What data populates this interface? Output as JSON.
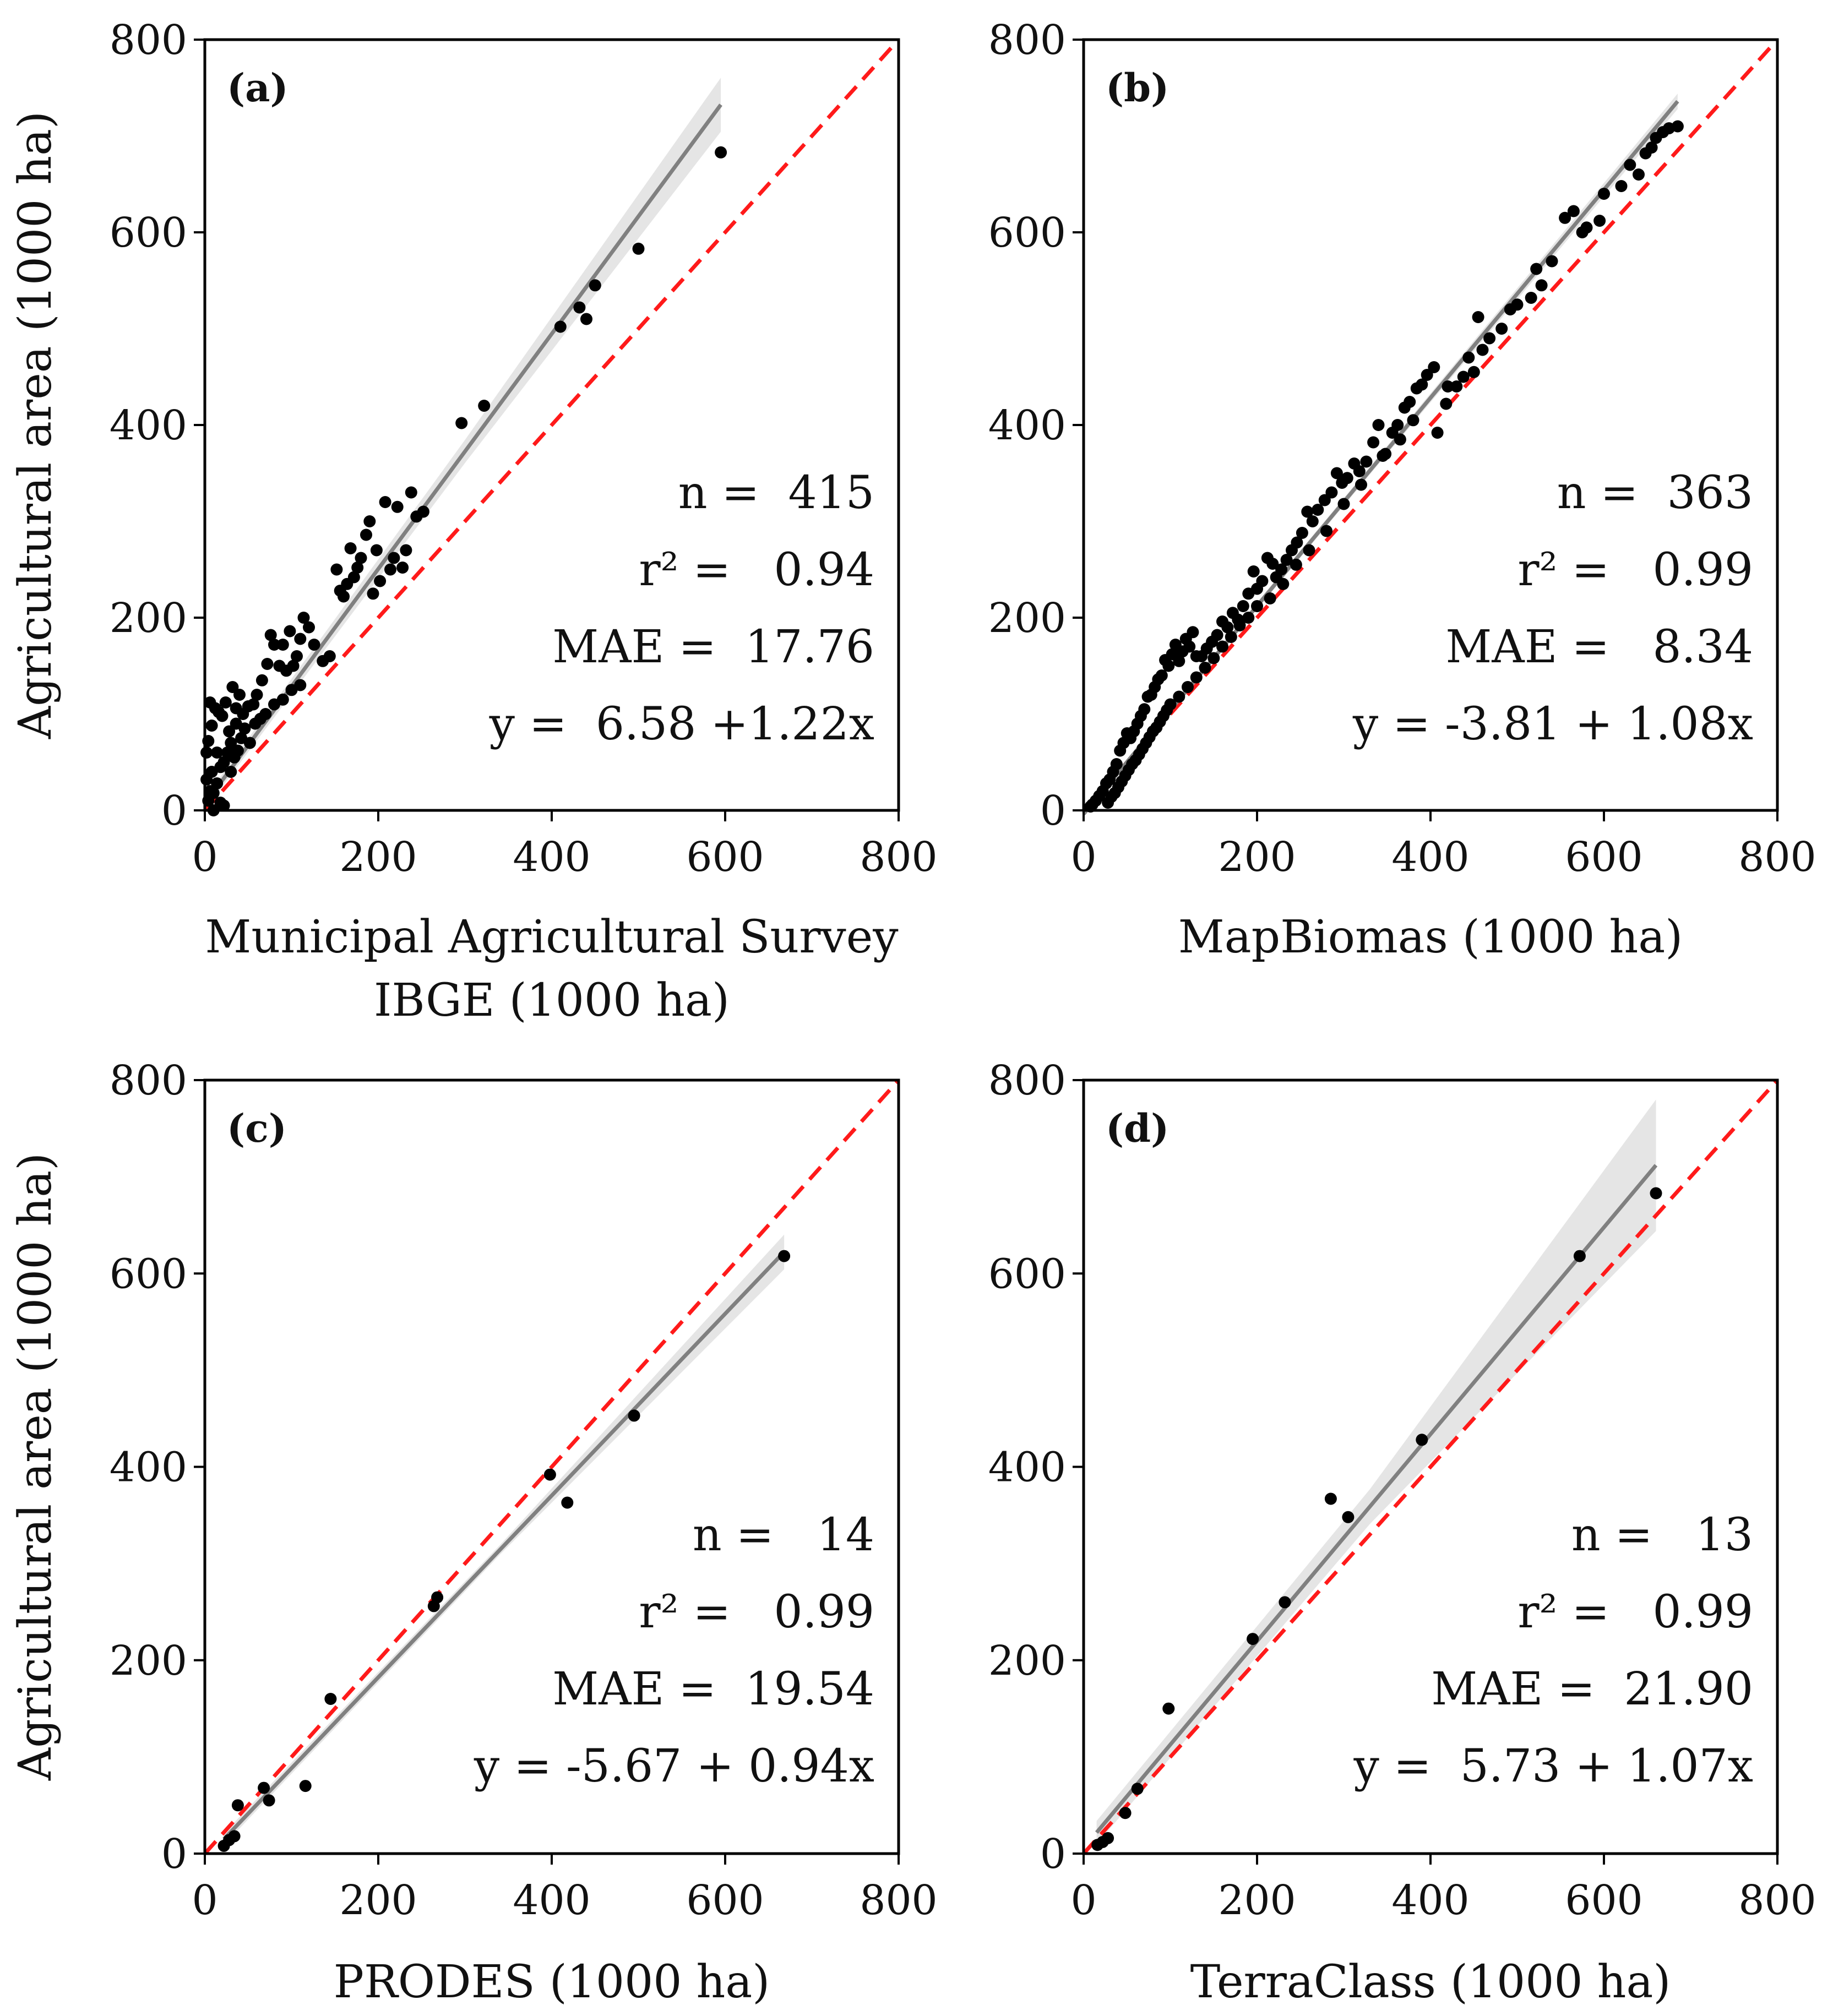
{
  "figure": {
    "ylabel": "Agricultural area (1000 ha)",
    "colors": {
      "points": "#000000",
      "fit_line": "#808080",
      "confidence_band": "#dcdcdc",
      "identity_line": "#ff1a1a",
      "axes": "#000000"
    }
  },
  "chart_data": [
    {
      "type": "scatter",
      "panel": "(a)",
      "xlabel_lines": [
        "Municipal Agricultural Survey",
        "IBGE (1000 ha)"
      ],
      "ylabel": "Agricultural area (1000 ha)",
      "xlim": [
        0,
        800
      ],
      "ylim": [
        0,
        800
      ],
      "ticks": [
        0,
        200,
        400,
        600,
        800
      ],
      "stats": [
        "n =  415",
        "r² =   0.94",
        "MAE =  17.76",
        "y =  6.58 +1.22x"
      ],
      "fit": {
        "intercept": 6.58,
        "slope": 1.22,
        "x_range": [
          0,
          595
        ],
        "band": [
          [
            0,
            6
          ],
          [
            300,
            12
          ],
          [
            595,
            28
          ]
        ]
      },
      "points": [
        [
          595,
          683
        ],
        [
          500,
          583
        ],
        [
          450,
          545
        ],
        [
          440,
          510
        ],
        [
          432,
          522
        ],
        [
          410,
          502
        ],
        [
          322,
          420
        ],
        [
          296,
          402
        ],
        [
          252,
          310
        ],
        [
          244,
          305
        ],
        [
          238,
          330
        ],
        [
          232,
          270
        ],
        [
          228,
          252
        ],
        [
          222,
          315
        ],
        [
          218,
          262
        ],
        [
          214,
          250
        ],
        [
          208,
          320
        ],
        [
          202,
          238
        ],
        [
          198,
          270
        ],
        [
          194,
          225
        ],
        [
          190,
          300
        ],
        [
          186,
          286
        ],
        [
          180,
          262
        ],
        [
          176,
          252
        ],
        [
          172,
          242
        ],
        [
          168,
          272
        ],
        [
          164,
          235
        ],
        [
          160,
          222
        ],
        [
          156,
          228
        ],
        [
          152,
          250
        ],
        [
          144,
          160
        ],
        [
          136,
          155
        ],
        [
          126,
          172
        ],
        [
          120,
          190
        ],
        [
          114,
          200
        ],
        [
          110,
          178
        ],
        [
          106,
          160
        ],
        [
          102,
          150
        ],
        [
          98,
          186
        ],
        [
          94,
          145
        ],
        [
          90,
          172
        ],
        [
          86,
          150
        ],
        [
          80,
          172
        ],
        [
          76,
          182
        ],
        [
          72,
          152
        ],
        [
          66,
          135
        ],
        [
          60,
          120
        ],
        [
          56,
          110
        ],
        [
          50,
          108
        ],
        [
          44,
          100
        ],
        [
          40,
          120
        ],
        [
          36,
          106
        ],
        [
          32,
          128
        ],
        [
          28,
          82
        ],
        [
          24,
          112
        ],
        [
          20,
          98
        ],
        [
          16,
          102
        ],
        [
          12,
          106
        ],
        [
          8,
          88
        ],
        [
          6,
          112
        ],
        [
          4,
          72
        ],
        [
          2,
          60
        ],
        [
          2,
          32
        ],
        [
          6,
          20
        ],
        [
          10,
          18
        ],
        [
          14,
          28
        ],
        [
          18,
          45
        ],
        [
          22,
          50
        ],
        [
          26,
          60
        ],
        [
          30,
          40
        ],
        [
          34,
          55
        ],
        [
          38,
          62
        ],
        [
          42,
          75
        ],
        [
          46,
          85
        ],
        [
          52,
          70
        ],
        [
          58,
          90
        ],
        [
          64,
          95
        ],
        [
          70,
          100
        ],
        [
          80,
          110
        ],
        [
          90,
          115
        ],
        [
          100,
          125
        ],
        [
          110,
          130
        ],
        [
          18,
          8
        ],
        [
          22,
          5
        ],
        [
          10,
          0
        ],
        [
          14,
          60
        ],
        [
          8,
          40
        ],
        [
          4,
          10
        ],
        [
          30,
          70
        ],
        [
          36,
          90
        ]
      ]
    },
    {
      "type": "scatter",
      "panel": "(b)",
      "xlabel_lines": [
        "MapBiomas (1000 ha)"
      ],
      "ylabel": "",
      "xlim": [
        0,
        800
      ],
      "ylim": [
        0,
        800
      ],
      "ticks": [
        0,
        200,
        400,
        600,
        800
      ],
      "stats": [
        "n =  363",
        "r² =   0.99",
        "MAE =   8.34",
        "y = -3.81 + 1.08x"
      ],
      "fit": {
        "intercept": -3.81,
        "slope": 1.08,
        "x_range": [
          0,
          685
        ],
        "band": [
          [
            0,
            3
          ],
          [
            340,
            4
          ],
          [
            685,
            8
          ]
        ]
      },
      "points": [
        [
          685,
          710
        ],
        [
          675,
          708
        ],
        [
          668,
          704
        ],
        [
          660,
          698
        ],
        [
          655,
          688
        ],
        [
          648,
          682
        ],
        [
          640,
          660
        ],
        [
          630,
          670
        ],
        [
          600,
          640
        ],
        [
          595,
          612
        ],
        [
          575,
          600
        ],
        [
          565,
          622
        ],
        [
          555,
          615
        ],
        [
          528,
          545
        ],
        [
          522,
          562
        ],
        [
          516,
          532
        ],
        [
          492,
          520
        ],
        [
          482,
          500
        ],
        [
          468,
          490
        ],
        [
          455,
          512
        ],
        [
          450,
          455
        ],
        [
          444,
          470
        ],
        [
          438,
          450
        ],
        [
          430,
          440
        ],
        [
          418,
          422
        ],
        [
          408,
          392
        ],
        [
          404,
          460
        ],
        [
          396,
          452
        ],
        [
          390,
          442
        ],
        [
          384,
          438
        ],
        [
          376,
          424
        ],
        [
          370,
          418
        ],
        [
          362,
          400
        ],
        [
          356,
          392
        ],
        [
          348,
          370
        ],
        [
          340,
          400
        ],
        [
          334,
          382
        ],
        [
          326,
          362
        ],
        [
          318,
          352
        ],
        [
          312,
          360
        ],
        [
          304,
          345
        ],
        [
          298,
          340
        ],
        [
          292,
          350
        ],
        [
          286,
          330
        ],
        [
          278,
          322
        ],
        [
          270,
          312
        ],
        [
          264,
          300
        ],
        [
          258,
          310
        ],
        [
          252,
          288
        ],
        [
          246,
          278
        ],
        [
          240,
          270
        ],
        [
          234,
          260
        ],
        [
          228,
          250
        ],
        [
          222,
          242
        ],
        [
          218,
          256
        ],
        [
          212,
          262
        ],
        [
          206,
          238
        ],
        [
          200,
          230
        ],
        [
          196,
          248
        ],
        [
          190,
          225
        ],
        [
          184,
          212
        ],
        [
          178,
          198
        ],
        [
          172,
          205
        ],
        [
          166,
          190
        ],
        [
          160,
          196
        ],
        [
          154,
          182
        ],
        [
          148,
          175
        ],
        [
          142,
          168
        ],
        [
          136,
          160
        ],
        [
          130,
          160
        ],
        [
          126,
          185
        ],
        [
          122,
          170
        ],
        [
          118,
          178
        ],
        [
          114,
          165
        ],
        [
          110,
          155
        ],
        [
          106,
          172
        ],
        [
          102,
          162
        ],
        [
          98,
          150
        ],
        [
          94,
          156
        ],
        [
          90,
          140
        ],
        [
          86,
          136
        ],
        [
          82,
          128
        ],
        [
          78,
          120
        ],
        [
          74,
          118
        ],
        [
          70,
          105
        ],
        [
          66,
          98
        ],
        [
          62,
          90
        ],
        [
          58,
          82
        ],
        [
          54,
          75
        ],
        [
          50,
          80
        ],
        [
          46,
          70
        ],
        [
          42,
          62
        ],
        [
          38,
          48
        ],
        [
          34,
          40
        ],
        [
          30,
          32
        ],
        [
          26,
          28
        ],
        [
          22,
          20
        ],
        [
          18,
          15
        ],
        [
          14,
          10
        ],
        [
          10,
          6
        ],
        [
          8,
          4
        ],
        [
          28,
          8
        ],
        [
          32,
          14
        ],
        [
          36,
          18
        ],
        [
          40,
          24
        ],
        [
          44,
          30
        ],
        [
          48,
          36
        ],
        [
          52,
          42
        ],
        [
          56,
          48
        ],
        [
          60,
          52
        ],
        [
          64,
          58
        ],
        [
          68,
          64
        ],
        [
          72,
          70
        ],
        [
          76,
          76
        ],
        [
          80,
          82
        ],
        [
          84,
          86
        ],
        [
          88,
          92
        ],
        [
          92,
          98
        ],
        [
          96,
          104
        ],
        [
          100,
          110
        ],
        [
          110,
          118
        ],
        [
          120,
          128
        ],
        [
          130,
          138
        ],
        [
          140,
          148
        ],
        [
          150,
          158
        ],
        [
          160,
          170
        ],
        [
          170,
          180
        ],
        [
          180,
          192
        ],
        [
          190,
          200
        ],
        [
          200,
          212
        ],
        [
          215,
          220
        ],
        [
          230,
          235
        ],
        [
          245,
          255
        ],
        [
          260,
          270
        ],
        [
          280,
          290
        ],
        [
          300,
          318
        ],
        [
          320,
          338
        ],
        [
          345,
          368
        ],
        [
          365,
          385
        ],
        [
          380,
          405
        ],
        [
          420,
          440
        ],
        [
          460,
          478
        ],
        [
          500,
          525
        ],
        [
          540,
          570
        ],
        [
          580,
          605
        ],
        [
          620,
          648
        ]
      ]
    },
    {
      "type": "scatter",
      "panel": "(c)",
      "xlabel_lines": [
        "PRODES (1000 ha)"
      ],
      "ylabel": "Agricultural area (1000 ha)",
      "xlim": [
        0,
        800
      ],
      "ylim": [
        0,
        800
      ],
      "ticks": [
        0,
        200,
        400,
        600,
        800
      ],
      "stats": [
        "n =   14",
        "r² =   0.99",
        "MAE =  19.54",
        "y = -5.67 + 0.94x"
      ],
      "fit": {
        "intercept": -5.67,
        "slope": 0.94,
        "x_range": [
          22,
          668
        ],
        "band": [
          [
            22,
            6
          ],
          [
            340,
            5
          ],
          [
            668,
            18
          ]
        ]
      },
      "points": [
        [
          668,
          618
        ],
        [
          495,
          453
        ],
        [
          418,
          363
        ],
        [
          398,
          392
        ],
        [
          268,
          265
        ],
        [
          264,
          256
        ],
        [
          145,
          160
        ],
        [
          116,
          70
        ],
        [
          74,
          55
        ],
        [
          68,
          68
        ],
        [
          38,
          50
        ],
        [
          34,
          18
        ],
        [
          28,
          14
        ],
        [
          22,
          8
        ]
      ]
    },
    {
      "type": "scatter",
      "panel": "(d)",
      "xlabel_lines": [
        "TerraClass (1000 ha)"
      ],
      "ylabel": "",
      "xlim": [
        0,
        800
      ],
      "ylim": [
        0,
        800
      ],
      "ticks": [
        0,
        200,
        400,
        600,
        800
      ],
      "stats": [
        "n =   13",
        "r² =   0.99",
        "MAE =  21.90",
        "y =  5.73 + 1.07x"
      ],
      "fit": {
        "intercept": 5.73,
        "slope": 1.07,
        "x_range": [
          15,
          660
        ],
        "band": [
          [
            15,
            12
          ],
          [
            330,
            18
          ],
          [
            660,
            68
          ]
        ]
      },
      "points": [
        [
          660,
          683
        ],
        [
          572,
          618
        ],
        [
          390,
          428
        ],
        [
          305,
          348
        ],
        [
          285,
          367
        ],
        [
          232,
          260
        ],
        [
          195,
          222
        ],
        [
          98,
          150
        ],
        [
          62,
          67
        ],
        [
          48,
          42
        ],
        [
          28,
          16
        ],
        [
          22,
          12
        ],
        [
          16,
          9
        ]
      ]
    }
  ]
}
